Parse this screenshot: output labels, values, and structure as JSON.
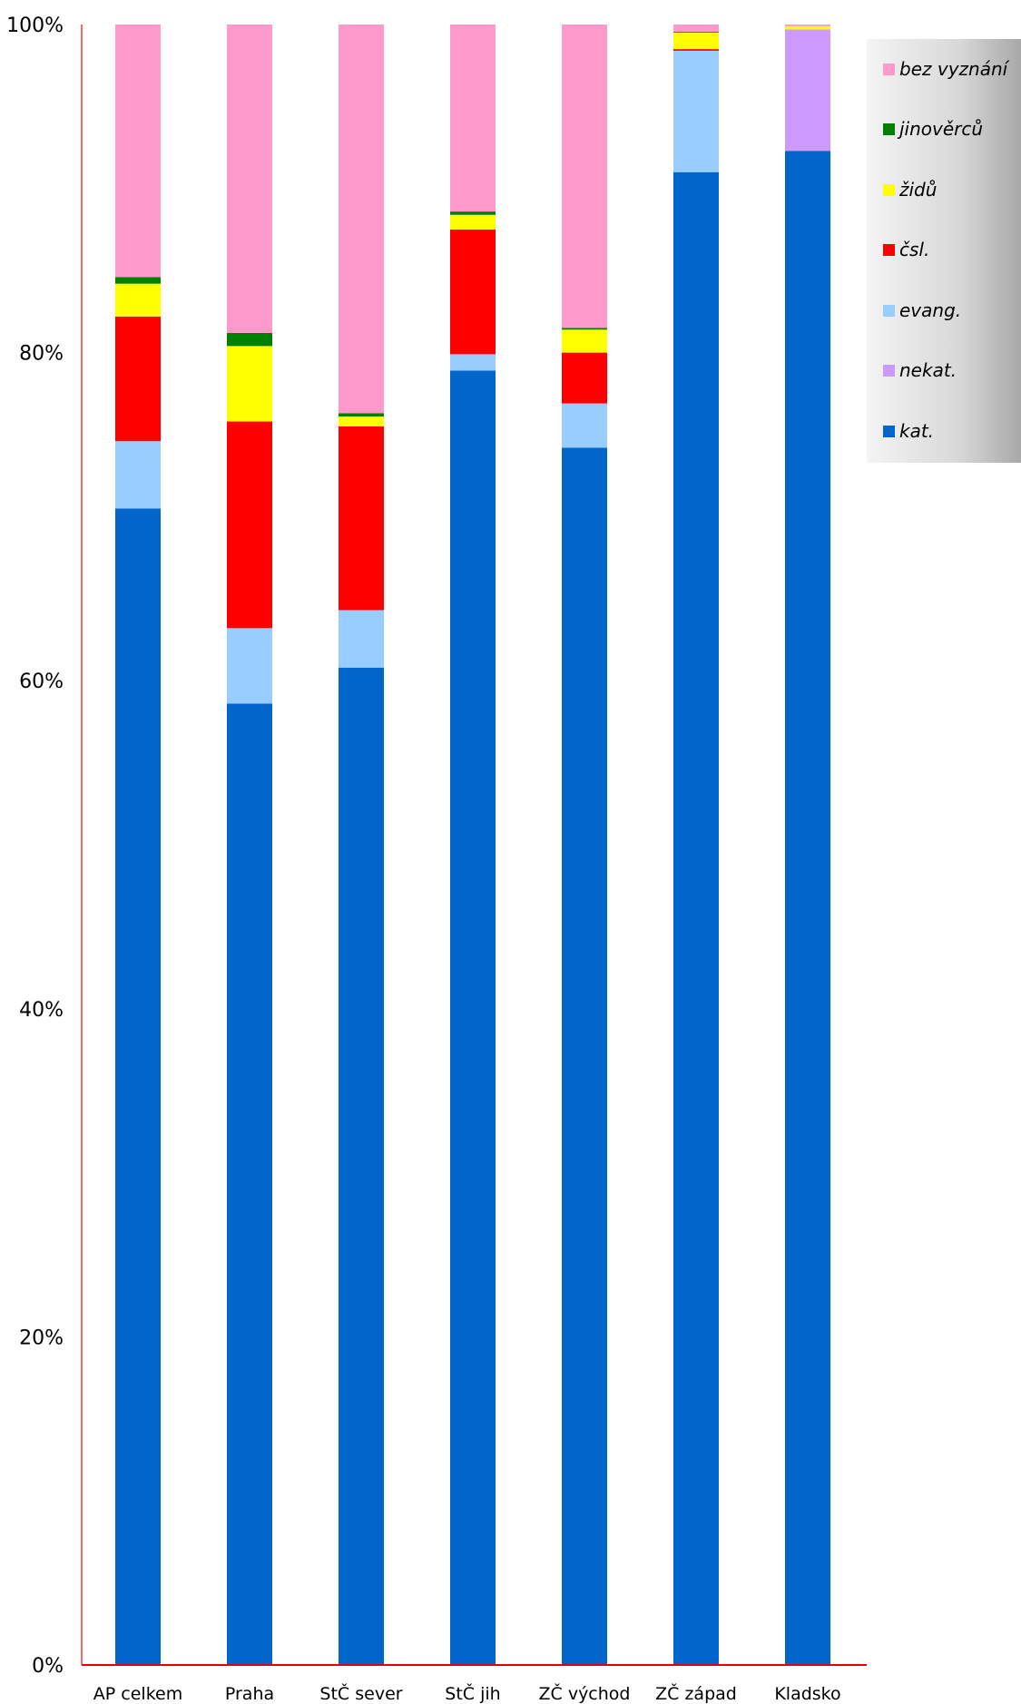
{
  "chart_data": {
    "type": "bar",
    "stacked": true,
    "normalized": true,
    "title": "",
    "xlabel": "",
    "ylabel": "",
    "ylim": [
      0,
      100
    ],
    "yticks": [
      "0%",
      "20%",
      "40%",
      "60%",
      "80%",
      "100%"
    ],
    "categories": [
      "AP celkem",
      "Praha",
      "StČ sever",
      "StČ jih",
      "ZČ východ",
      "ZČ západ",
      "Kladsko"
    ],
    "legend_position": "right",
    "grid": false,
    "series": [
      {
        "name": "kat.",
        "color": "#0066CC",
        "values": [
          70.5,
          58.6,
          60.8,
          78.9,
          74.2,
          91.0,
          92.3
        ]
      },
      {
        "name": "nekat.",
        "color": "#CC99FF",
        "values": [
          0,
          0,
          0,
          0,
          0,
          0,
          7.4
        ]
      },
      {
        "name": "evang.",
        "color": "#99CCFF",
        "values": [
          4.1,
          4.6,
          3.5,
          1.0,
          2.7,
          7.4,
          0
        ]
      },
      {
        "name": "čsl.",
        "color": "#FF0000",
        "values": [
          7.6,
          12.6,
          11.2,
          7.6,
          3.1,
          0.1,
          0
        ]
      },
      {
        "name": "židů",
        "color": "#FFFF00",
        "values": [
          2.0,
          4.6,
          0.6,
          0.9,
          1.4,
          1.0,
          0.2
        ]
      },
      {
        "name": "jinověrců",
        "color": "#008000",
        "values": [
          0.4,
          0.8,
          0.2,
          0.2,
          0.1,
          0.05,
          0
        ]
      },
      {
        "name": "bez vyznání",
        "color": "#FF99CC",
        "values": [
          15.4,
          18.8,
          23.7,
          11.4,
          18.5,
          0.45,
          0.1
        ]
      }
    ]
  },
  "legend": {
    "order": [
      "bez vyznání",
      "jinověrců",
      "židů",
      "čsl.",
      "evang.",
      "nekat.",
      "kat."
    ]
  },
  "colors": {
    "axis": "#FF6666",
    "baseline": "#E00000"
  }
}
